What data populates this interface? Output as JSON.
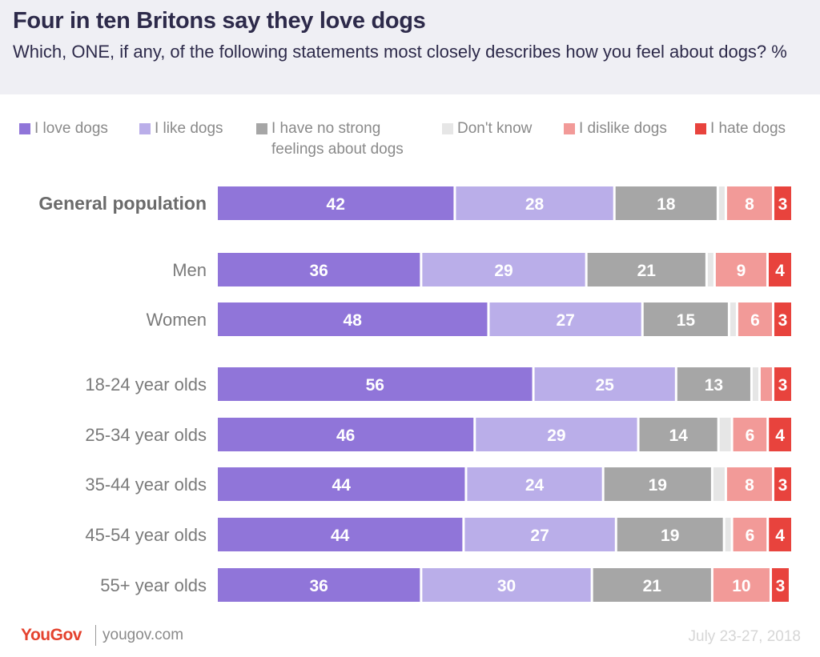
{
  "header": {
    "title": "Four in ten Britons say they love dogs",
    "subtitle": "Which, ONE, if any, of the following statements most closely describes how you feel about dogs? %"
  },
  "colors": {
    "love": "#9075d9",
    "like": "#baaee9",
    "no_strong": "#a6a6a6",
    "dont_know": "#e6e6e6",
    "dislike": "#f29a98",
    "hate": "#e8433d"
  },
  "chart_data": {
    "type": "bar",
    "orientation": "horizontal",
    "stacked": true,
    "unit": "%",
    "legend": "top",
    "categories": [
      "General population",
      "Men",
      "Women",
      "18-24 year olds",
      "25-34 year olds",
      "35-44 year olds",
      "45-54 year olds",
      "55+ year olds"
    ],
    "series": [
      {
        "name": "I love dogs",
        "color": "#9075d9",
        "values": [
          42,
          36,
          48,
          56,
          46,
          44,
          44,
          36
        ]
      },
      {
        "name": "I like dogs",
        "color": "#baaee9",
        "values": [
          28,
          29,
          27,
          25,
          29,
          24,
          27,
          30
        ]
      },
      {
        "name": "I have no strong feelings about dogs",
        "color": "#a6a6a6",
        "values": [
          18,
          21,
          15,
          13,
          14,
          19,
          19,
          21
        ]
      },
      {
        "name": "Don't know",
        "color": "#e6e6e6",
        "values": [
          1,
          1,
          1,
          1,
          2,
          2,
          1,
          0
        ]
      },
      {
        "name": "I dislike dogs",
        "color": "#f29a98",
        "values": [
          8,
          9,
          6,
          2,
          6,
          8,
          6,
          10
        ]
      },
      {
        "name": "I hate dogs",
        "color": "#e8433d",
        "values": [
          3,
          4,
          3,
          3,
          4,
          3,
          4,
          3
        ]
      }
    ],
    "data_labels": [
      [
        "42",
        "36",
        "48",
        "56",
        "46",
        "44",
        "44",
        "36"
      ],
      [
        "28",
        "29",
        "27",
        "25",
        "29",
        "24",
        "27",
        "30"
      ],
      [
        "18",
        "21",
        "15",
        "13",
        "14",
        "19",
        "19",
        "21"
      ],
      [
        "",
        "",
        "",
        "",
        "",
        "",
        "",
        ""
      ],
      [
        "8",
        "9",
        "6",
        "",
        "6",
        "8",
        "6",
        "10"
      ],
      [
        "3",
        "4",
        "3",
        "3",
        "4",
        "3",
        "4",
        "3"
      ]
    ]
  },
  "legend_labels": {
    "love": "I love dogs",
    "like": "I like dogs",
    "no_strong": "I have no strong\nfeelings about dogs",
    "dont_know": "Don't know",
    "dislike": "I dislike dogs",
    "hate": "I hate dogs"
  },
  "footer": {
    "logo": "YouGov",
    "url": "yougov.com",
    "date": "July 23-27, 2018"
  }
}
